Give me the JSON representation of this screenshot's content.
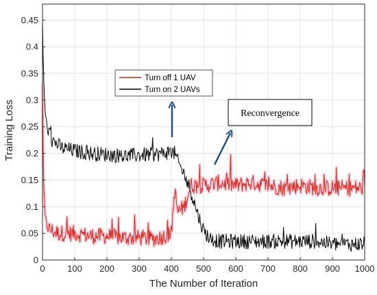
{
  "chart_data": {
    "type": "line",
    "title": "",
    "xlabel": "The Number of Iteration",
    "ylabel": "Training Loss",
    "xlim": [
      0,
      1000
    ],
    "ylim": [
      0,
      0.48
    ],
    "xticks": [
      0,
      100,
      200,
      300,
      400,
      500,
      600,
      700,
      800,
      900,
      1000
    ],
    "xtick_labels": [
      "0",
      "100",
      "200",
      "300",
      "400",
      "500",
      "600",
      "700",
      "800",
      "900",
      "1000"
    ],
    "yticks": [
      0,
      0.05,
      0.1,
      0.15,
      0.2,
      0.25,
      0.3,
      0.35,
      0.4,
      0.45
    ],
    "ytick_labels": [
      "0",
      "0.05",
      "0.1",
      "0.15",
      "0.2",
      "0.25",
      "0.3",
      "0.35",
      "0.4",
      "0.45"
    ],
    "grid": true,
    "legend_position": "upper-center",
    "series": [
      {
        "name": "Turn off 1 UAV",
        "color": "#8b3a1a",
        "x": [
          0,
          3,
          8,
          15,
          30,
          50,
          100,
          150,
          200,
          250,
          300,
          350,
          380,
          400,
          410,
          420,
          440,
          460,
          480,
          500,
          550,
          600,
          650,
          700,
          750,
          800,
          850,
          900,
          950,
          1000
        ],
        "values": [
          0.33,
          0.15,
          0.08,
          0.06,
          0.055,
          0.05,
          0.05,
          0.045,
          0.045,
          0.042,
          0.042,
          0.04,
          0.045,
          0.05,
          0.13,
          0.09,
          0.1,
          0.14,
          0.14,
          0.14,
          0.145,
          0.14,
          0.145,
          0.14,
          0.135,
          0.14,
          0.135,
          0.135,
          0.135,
          0.135
        ]
      },
      {
        "name": "Turn on 2 UAVs",
        "color": "#000000",
        "x": [
          0,
          3,
          8,
          15,
          30,
          60,
          100,
          150,
          200,
          250,
          300,
          350,
          400,
          410,
          420,
          440,
          460,
          480,
          500,
          520,
          550,
          600,
          650,
          700,
          750,
          800,
          850,
          900,
          950,
          1000
        ],
        "values": [
          0.45,
          0.35,
          0.28,
          0.245,
          0.225,
          0.21,
          0.205,
          0.2,
          0.198,
          0.195,
          0.197,
          0.198,
          0.203,
          0.2,
          0.185,
          0.16,
          0.13,
          0.09,
          0.055,
          0.04,
          0.035,
          0.035,
          0.035,
          0.035,
          0.035,
          0.035,
          0.035,
          0.03,
          0.03,
          0.03
        ]
      }
    ],
    "annotation": "Reconvergence"
  },
  "colors": {
    "noise_highlight": "#ff2020",
    "arrow": "#1f4e8c",
    "grid": "#dcdcdc"
  }
}
